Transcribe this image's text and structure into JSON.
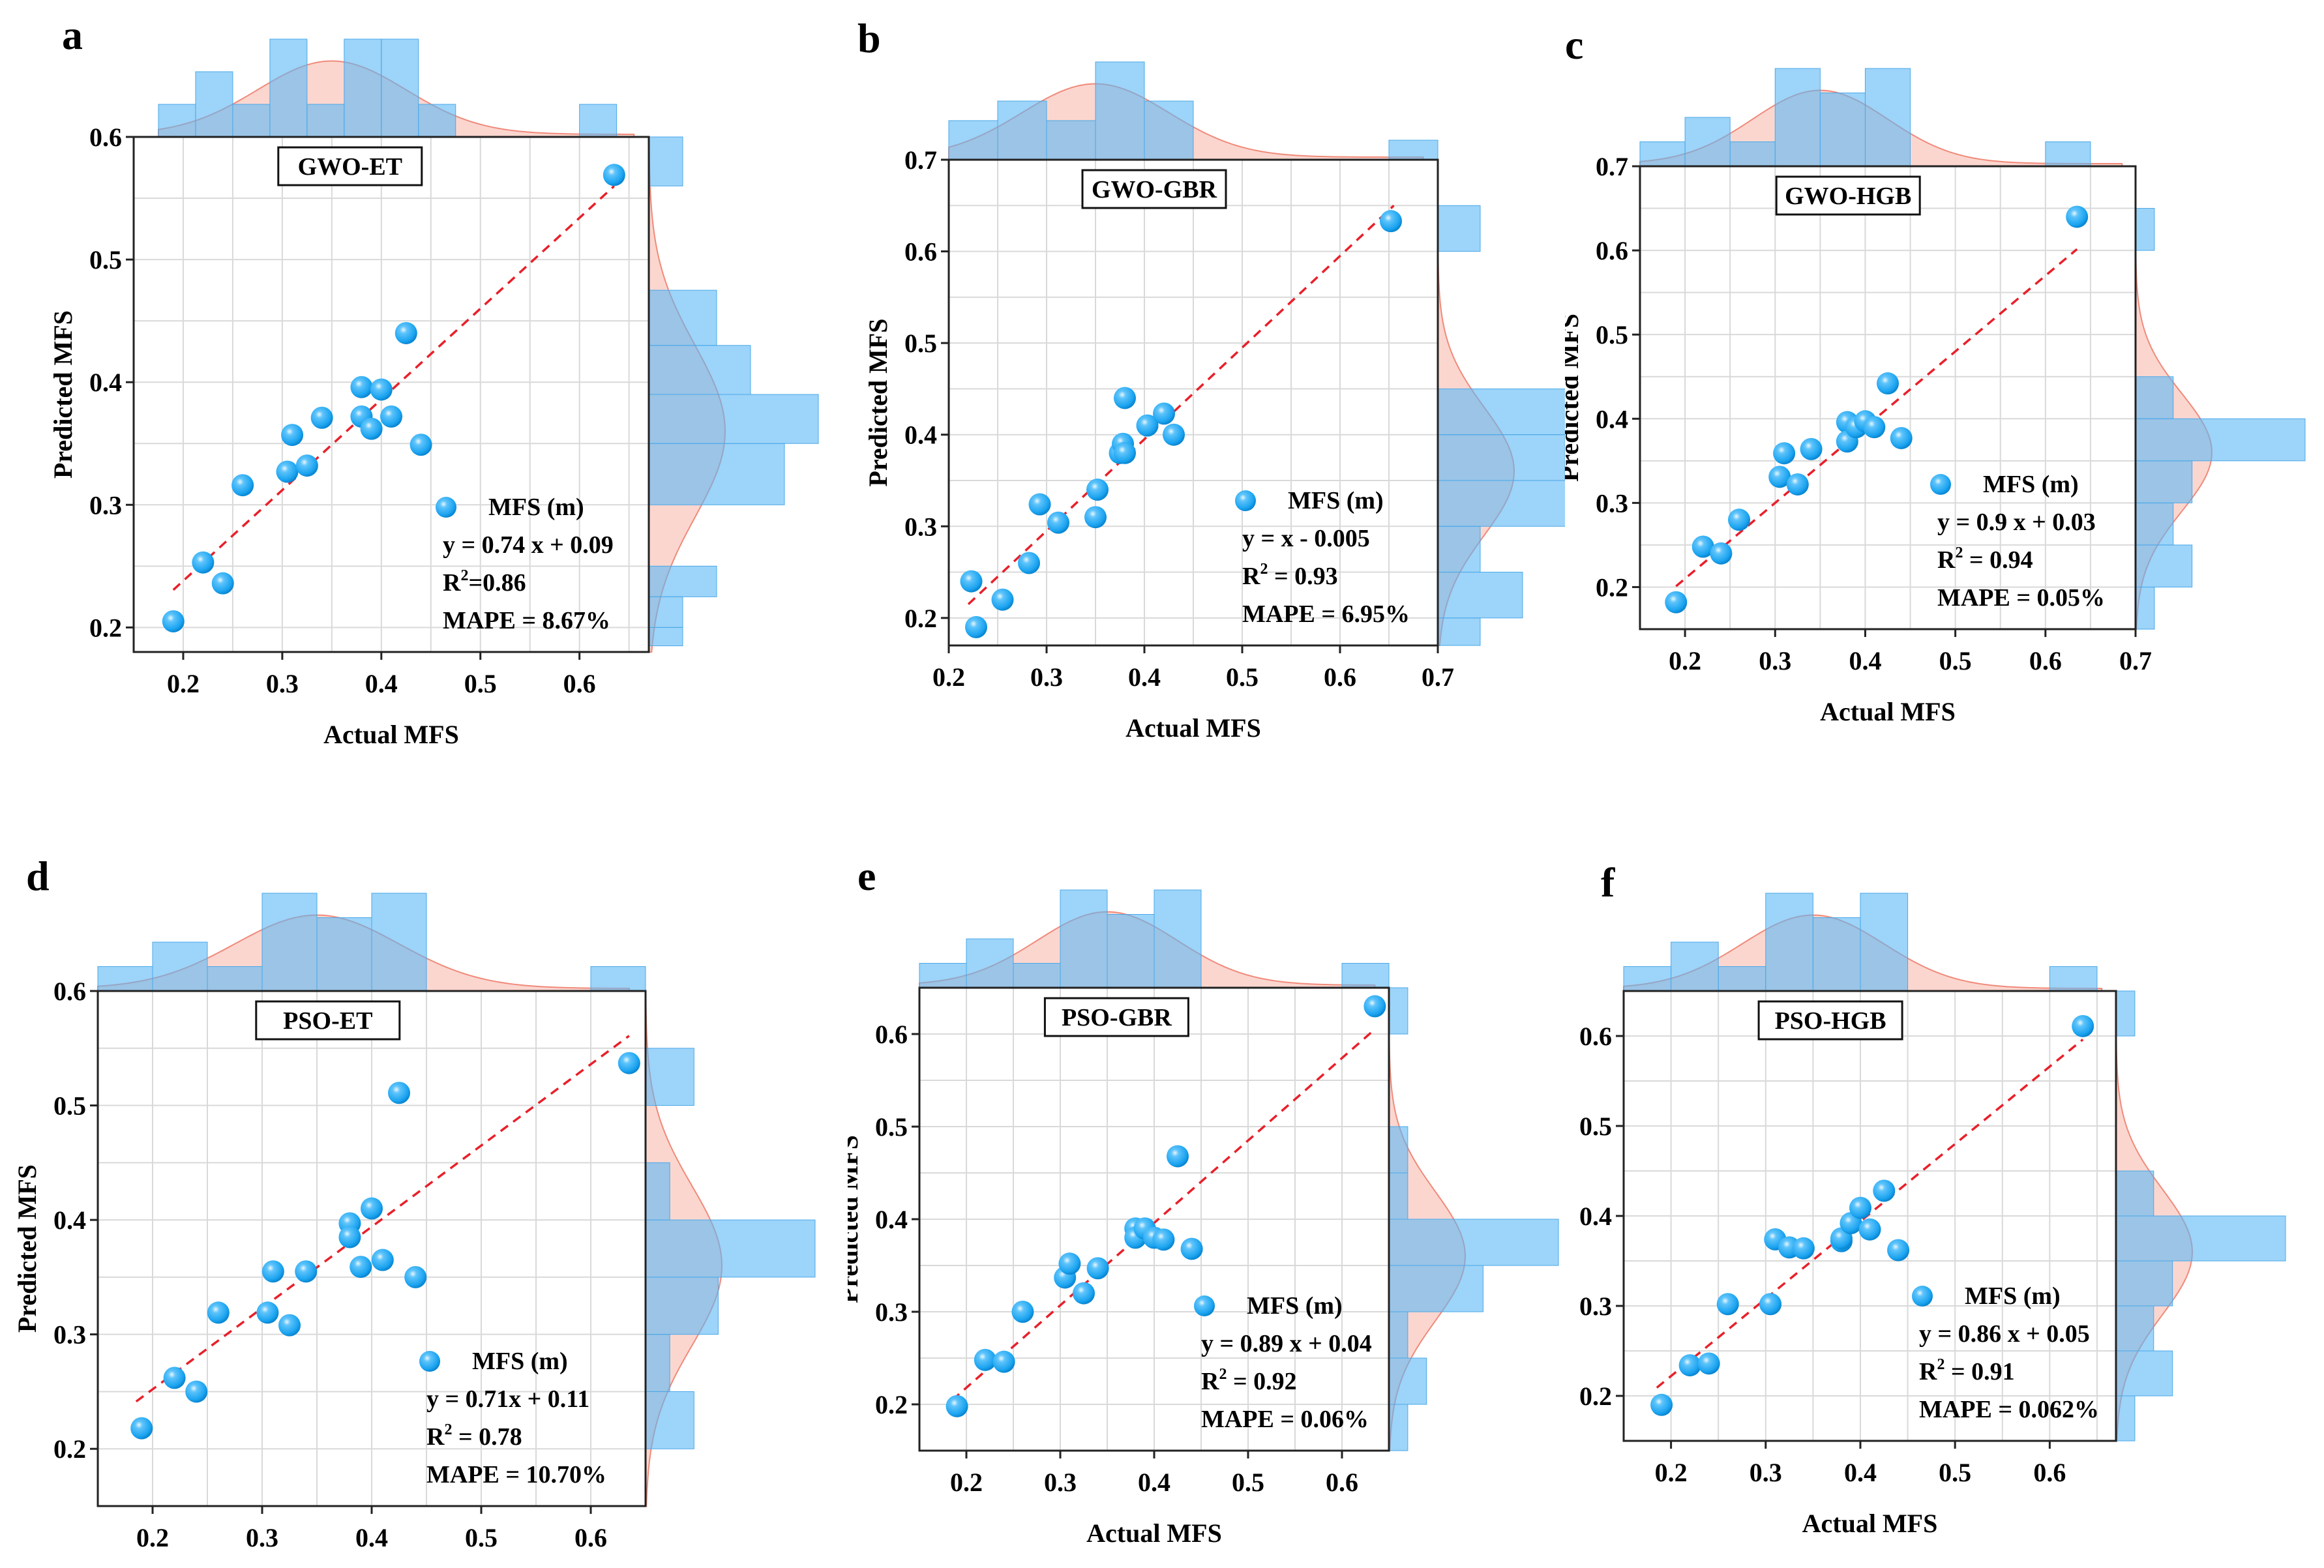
{
  "figure": {
    "xlabel": "Actual MFS",
    "ylabel": "Predicted MFS",
    "legend_label": "MFS (m)",
    "colors": {
      "point": "#1aa3f0",
      "fit_line": "#e8202a",
      "hist": "#5bb8f5",
      "kde": "#f8b5a8",
      "grid": "#d9d9d9"
    }
  },
  "chart_data": [
    {
      "panel": "a",
      "type": "scatter",
      "title": "GWO-ET",
      "xlim": [
        0.15,
        0.67
      ],
      "ylim": [
        0.18,
        0.6
      ],
      "xticks": [
        "0.2",
        "0.3",
        "0.4",
        "0.5",
        "0.6"
      ],
      "xtick_values": [
        0.2,
        0.3,
        0.4,
        0.5,
        0.6
      ],
      "yticks": [
        "0.2",
        "0.3",
        "0.4",
        "0.5",
        "0.6"
      ],
      "ytick_values": [
        0.2,
        0.3,
        0.4,
        0.5,
        0.6
      ],
      "x": [
        0.19,
        0.22,
        0.24,
        0.26,
        0.305,
        0.31,
        0.325,
        0.34,
        0.38,
        0.38,
        0.39,
        0.4,
        0.41,
        0.425,
        0.44,
        0.635
      ],
      "y": [
        0.205,
        0.253,
        0.236,
        0.316,
        0.327,
        0.357,
        0.332,
        0.371,
        0.396,
        0.372,
        0.362,
        0.394,
        0.372,
        0.44,
        0.349,
        0.569
      ],
      "fit": {
        "slope": 0.74,
        "intercept": 0.09,
        "x_range": [
          0.19,
          0.635
        ]
      },
      "equation": "y = 0.74 x + 0.09",
      "r2": "=0.86",
      "mape": "MAPE = 8.67%",
      "hist_x": {
        "edges": [
          0.175,
          0.2125,
          0.25,
          0.2875,
          0.325,
          0.3625,
          0.4,
          0.4375,
          0.475
        ],
        "counts": [
          1,
          2,
          1,
          3,
          1,
          3,
          3,
          1
        ],
        "extra": {
          "edge": [
            0.6,
            0.6375
          ],
          "count": 1
        }
      },
      "hist_y": {
        "edges": [
          0.185,
          0.2,
          0.225,
          0.25,
          0.3,
          0.35,
          0.39,
          0.43,
          0.475,
          0.56,
          0.6
        ],
        "counts": [
          1,
          1,
          2,
          0,
          4,
          5,
          3,
          2,
          0,
          1
        ]
      }
    },
    {
      "panel": "b",
      "type": "scatter",
      "title": "GWO-GBR",
      "xlim": [
        0.2,
        0.7
      ],
      "ylim": [
        0.17,
        0.7
      ],
      "xticks": [
        "0.2",
        "0.3",
        "0.4",
        "0.5",
        "0.6",
        "0.7"
      ],
      "xtick_values": [
        0.2,
        0.3,
        0.4,
        0.5,
        0.6,
        0.7
      ],
      "yticks": [
        "0.2",
        "0.3",
        "0.4",
        "0.5",
        "0.6",
        "0.7"
      ],
      "ytick_values": [
        0.2,
        0.3,
        0.4,
        0.5,
        0.6,
        0.7
      ],
      "x": [
        0.223,
        0.228,
        0.255,
        0.282,
        0.293,
        0.312,
        0.35,
        0.352,
        0.375,
        0.378,
        0.38,
        0.38,
        0.403,
        0.42,
        0.43,
        0.652
      ],
      "y": [
        0.24,
        0.19,
        0.22,
        0.26,
        0.324,
        0.304,
        0.31,
        0.34,
        0.38,
        0.39,
        0.38,
        0.44,
        0.41,
        0.423,
        0.4,
        0.633
      ],
      "fit": {
        "slope": 1.0,
        "intercept": -0.005,
        "x_range": [
          0.22,
          0.655
        ]
      },
      "equation": "y = x - 0.005",
      "r2": " = 0.93",
      "mape": "MAPE = 6.95%",
      "hist_x": {
        "edges": [
          0.2,
          0.25,
          0.3,
          0.35,
          0.4,
          0.45
        ],
        "counts": [
          2,
          3,
          2,
          5,
          3
        ],
        "extra": {
          "edge": [
            0.65,
            0.7
          ],
          "count": 1
        }
      },
      "hist_y": {
        "edges": [
          0.17,
          0.2,
          0.25,
          0.3,
          0.35,
          0.4,
          0.45,
          0.6,
          0.65
        ],
        "counts": [
          1,
          2,
          1,
          4,
          3,
          4,
          0,
          1
        ]
      }
    },
    {
      "panel": "c",
      "type": "scatter",
      "title": "GWO-HGB",
      "xlim": [
        0.15,
        0.7
      ],
      "ylim": [
        0.15,
        0.7
      ],
      "xticks": [
        "0.2",
        "0.3",
        "0.4",
        "0.5",
        "0.6",
        "0.7"
      ],
      "xtick_values": [
        0.2,
        0.3,
        0.4,
        0.5,
        0.6,
        0.7
      ],
      "yticks": [
        "0.2",
        "0.3",
        "0.4",
        "0.5",
        "0.6",
        "0.7"
      ],
      "ytick_values": [
        0.2,
        0.3,
        0.4,
        0.5,
        0.6,
        0.7
      ],
      "x": [
        0.19,
        0.22,
        0.24,
        0.26,
        0.305,
        0.31,
        0.325,
        0.34,
        0.38,
        0.38,
        0.39,
        0.4,
        0.41,
        0.425,
        0.44,
        0.635
      ],
      "y": [
        0.182,
        0.248,
        0.24,
        0.28,
        0.331,
        0.359,
        0.322,
        0.364,
        0.396,
        0.373,
        0.39,
        0.397,
        0.39,
        0.442,
        0.377,
        0.64
      ],
      "fit": {
        "slope": 0.9,
        "intercept": 0.03,
        "x_range": [
          0.19,
          0.635
        ]
      },
      "equation": "y = 0.9 x + 0.03",
      "r2": " = 0.94",
      "mape": "MAPE = 0.05%",
      "hist_x": {
        "edges": [
          0.15,
          0.2,
          0.25,
          0.3,
          0.35,
          0.4,
          0.45
        ],
        "counts": [
          1,
          2,
          1,
          4,
          3,
          4
        ],
        "extra": {
          "edge": [
            0.6,
            0.65
          ],
          "count": 1
        }
      },
      "hist_y": {
        "edges": [
          0.15,
          0.2,
          0.25,
          0.3,
          0.35,
          0.4,
          0.45,
          0.6,
          0.65
        ],
        "counts": [
          1,
          3,
          2,
          3,
          9,
          2,
          0,
          1
        ]
      }
    },
    {
      "panel": "d",
      "type": "scatter",
      "title": "PSO-ET",
      "xlim": [
        0.15,
        0.65
      ],
      "ylim": [
        0.15,
        0.6
      ],
      "xticks": [
        "0.2",
        "0.3",
        "0.4",
        "0.5",
        "0.6"
      ],
      "xtick_values": [
        0.2,
        0.3,
        0.4,
        0.5,
        0.6
      ],
      "yticks": [
        "0.2",
        "0.3",
        "0.4",
        "0.5",
        "0.6"
      ],
      "ytick_values": [
        0.2,
        0.3,
        0.4,
        0.5,
        0.6
      ],
      "x": [
        0.19,
        0.22,
        0.24,
        0.26,
        0.305,
        0.31,
        0.325,
        0.34,
        0.38,
        0.38,
        0.39,
        0.4,
        0.41,
        0.425,
        0.44,
        0.635
      ],
      "y": [
        0.218,
        0.262,
        0.25,
        0.319,
        0.319,
        0.355,
        0.308,
        0.355,
        0.397,
        0.385,
        0.359,
        0.41,
        0.365,
        0.511,
        0.35,
        0.537
      ],
      "fit": {
        "slope": 0.71,
        "intercept": 0.11,
        "x_range": [
          0.185,
          0.635
        ]
      },
      "equation": "y = 0.71x + 0.11",
      "r2": " = 0.78",
      "mape": "MAPE = 10.70%",
      "hist_x": {
        "edges": [
          0.15,
          0.2,
          0.25,
          0.3,
          0.35,
          0.4,
          0.45
        ],
        "counts": [
          1,
          2,
          1,
          4,
          3,
          4
        ],
        "extra": {
          "edge": [
            0.6,
            0.65
          ],
          "count": 1
        }
      },
      "hist_y": {
        "edges": [
          0.15,
          0.2,
          0.25,
          0.3,
          0.35,
          0.4,
          0.45,
          0.5,
          0.55
        ],
        "counts": [
          0,
          2,
          1,
          3,
          7,
          1,
          0,
          2
        ]
      }
    },
    {
      "panel": "e",
      "type": "scatter",
      "title": "PSO-GBR",
      "xlim": [
        0.15,
        0.65
      ],
      "ylim": [
        0.15,
        0.65
      ],
      "xticks": [
        "0.2",
        "0.3",
        "0.4",
        "0.5",
        "0.6"
      ],
      "xtick_values": [
        0.2,
        0.3,
        0.4,
        0.5,
        0.6
      ],
      "yticks": [
        "0.2",
        "0.3",
        "0.4",
        "0.5",
        "0.6"
      ],
      "ytick_values": [
        0.2,
        0.3,
        0.4,
        0.5,
        0.6
      ],
      "x": [
        0.19,
        0.22,
        0.24,
        0.26,
        0.305,
        0.31,
        0.325,
        0.34,
        0.38,
        0.38,
        0.39,
        0.4,
        0.41,
        0.425,
        0.44,
        0.635
      ],
      "y": [
        0.198,
        0.248,
        0.246,
        0.3,
        0.337,
        0.352,
        0.32,
        0.347,
        0.39,
        0.38,
        0.39,
        0.38,
        0.378,
        0.468,
        0.368,
        0.63
      ],
      "fit": {
        "slope": 0.89,
        "intercept": 0.04,
        "x_range": [
          0.185,
          0.635
        ]
      },
      "equation": "y = 0.89 x + 0.04",
      "r2": " = 0.92",
      "mape": "MAPE = 0.06%",
      "hist_x": {
        "edges": [
          0.15,
          0.2,
          0.25,
          0.3,
          0.35,
          0.4,
          0.45
        ],
        "counts": [
          1,
          2,
          1,
          4,
          3,
          4
        ],
        "extra": {
          "edge": [
            0.6,
            0.65
          ],
          "count": 1
        }
      },
      "hist_y": {
        "edges": [
          0.15,
          0.2,
          0.25,
          0.3,
          0.35,
          0.4,
          0.45,
          0.5,
          0.6,
          0.65
        ],
        "counts": [
          1,
          2,
          1,
          5,
          9,
          1,
          1,
          0,
          1
        ]
      }
    },
    {
      "panel": "f",
      "type": "scatter",
      "title": "PSO-HGB",
      "xlim": [
        0.15,
        0.67
      ],
      "ylim": [
        0.15,
        0.65
      ],
      "xticks": [
        "0.2",
        "0.3",
        "0.4",
        "0.5",
        "0.6"
      ],
      "xtick_values": [
        0.2,
        0.3,
        0.4,
        0.5,
        0.6
      ],
      "yticks": [
        "0.2",
        "0.3",
        "0.4",
        "0.5",
        "0.6"
      ],
      "ytick_values": [
        0.2,
        0.3,
        0.4,
        0.5,
        0.6
      ],
      "x": [
        0.19,
        0.22,
        0.24,
        0.26,
        0.305,
        0.31,
        0.325,
        0.34,
        0.38,
        0.38,
        0.39,
        0.4,
        0.41,
        0.425,
        0.44,
        0.635
      ],
      "y": [
        0.19,
        0.234,
        0.236,
        0.302,
        0.302,
        0.374,
        0.365,
        0.364,
        0.372,
        0.375,
        0.392,
        0.409,
        0.385,
        0.428,
        0.362,
        0.611
      ],
      "fit": {
        "slope": 0.86,
        "intercept": 0.05,
        "x_range": [
          0.185,
          0.635
        ]
      },
      "equation": "y = 0.86 x + 0.05",
      "r2": " = 0.91",
      "mape": "MAPE = 0.062%",
      "hist_x": {
        "edges": [
          0.15,
          0.2,
          0.25,
          0.3,
          0.35,
          0.4,
          0.45
        ],
        "counts": [
          1,
          2,
          1,
          4,
          3,
          4
        ],
        "extra": {
          "edge": [
            0.6,
            0.65
          ],
          "count": 1
        }
      },
      "hist_y": {
        "edges": [
          0.15,
          0.2,
          0.25,
          0.3,
          0.35,
          0.4,
          0.45,
          0.6,
          0.65
        ],
        "counts": [
          1,
          3,
          2,
          3,
          9,
          2,
          0,
          1
        ]
      }
    }
  ]
}
